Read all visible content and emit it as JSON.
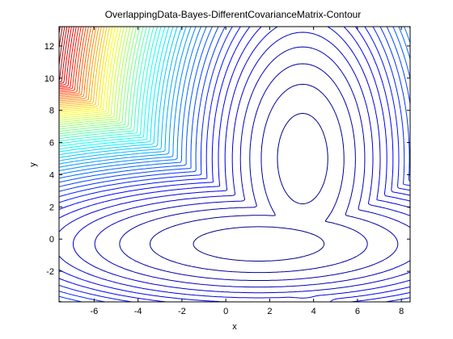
{
  "chart_data": {
    "type": "contour",
    "title": "OverlappingData-Bayes-DifferentCovarianceMatrix-Contour",
    "xlabel": "x",
    "ylabel": "y",
    "xlim": [
      -7.6,
      8.4
    ],
    "ylim": [
      -3.9,
      13.2
    ],
    "xticks": [
      -6,
      -4,
      -2,
      0,
      2,
      4,
      6,
      8
    ],
    "yticks": [
      -2,
      0,
      2,
      4,
      6,
      8,
      10,
      12
    ],
    "grid": false,
    "colormap": "jet",
    "components": [
      {
        "mean": [
          3.5,
          5.0
        ],
        "cov": [
          [
            1.0,
            0.0
          ],
          [
            0.0,
            6.0
          ]
        ]
      },
      {
        "mean": [
          1.5,
          -0.3
        ],
        "cov": [
          [
            7.0,
            0.0
          ],
          [
            0.0,
            0.9
          ]
        ]
      }
    ],
    "colors": {
      "low": "#7f0000",
      "high": "#00007f",
      "axes": "#000000"
    }
  }
}
